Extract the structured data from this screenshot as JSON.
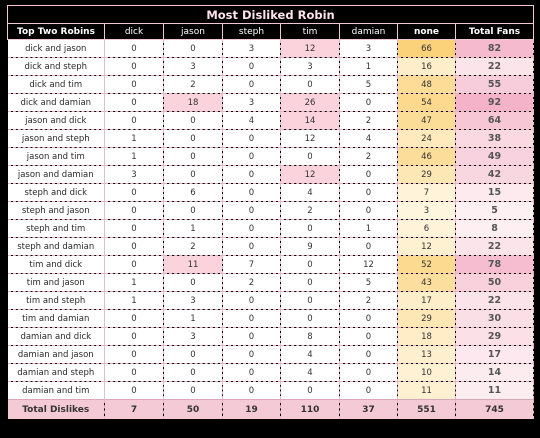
{
  "title": "Most Disliked Robin",
  "headers": [
    "Top Two Robins",
    "dick",
    "jason",
    "steph",
    "tim",
    "damian",
    "none",
    "Total Fans"
  ],
  "rows": [
    {
      "pair": "dick and jason",
      "v": [
        0,
        0,
        3,
        12,
        3,
        66
      ],
      "total": 82
    },
    {
      "pair": "dick and steph",
      "v": [
        0,
        3,
        0,
        3,
        1,
        16
      ],
      "total": 22
    },
    {
      "pair": "dick and tim",
      "v": [
        0,
        2,
        0,
        0,
        5,
        48
      ],
      "total": 55
    },
    {
      "pair": "dick and damian",
      "v": [
        0,
        18,
        3,
        26,
        0,
        54
      ],
      "total": 92
    },
    {
      "pair": "jason and dick",
      "v": [
        0,
        0,
        4,
        14,
        2,
        47
      ],
      "total": 64
    },
    {
      "pair": "jason and steph",
      "v": [
        1,
        0,
        0,
        12,
        4,
        24
      ],
      "total": 38
    },
    {
      "pair": "jason and tim",
      "v": [
        1,
        0,
        0,
        0,
        2,
        46
      ],
      "total": 49
    },
    {
      "pair": "jason and damian",
      "v": [
        3,
        0,
        0,
        12,
        0,
        29
      ],
      "total": 42
    },
    {
      "pair": "steph and dick",
      "v": [
        0,
        6,
        0,
        4,
        0,
        7
      ],
      "total": 15
    },
    {
      "pair": "steph and jason",
      "v": [
        0,
        0,
        0,
        2,
        0,
        3
      ],
      "total": 5
    },
    {
      "pair": "steph and tim",
      "v": [
        0,
        1,
        0,
        0,
        1,
        6
      ],
      "total": 8
    },
    {
      "pair": "steph and damian",
      "v": [
        0,
        2,
        0,
        9,
        0,
        12
      ],
      "total": 22
    },
    {
      "pair": "tim and dick",
      "v": [
        0,
        11,
        7,
        0,
        12,
        52
      ],
      "total": 78
    },
    {
      "pair": "tim and jason",
      "v": [
        1,
        0,
        2,
        0,
        5,
        43
      ],
      "total": 50
    },
    {
      "pair": "tim and steph",
      "v": [
        1,
        3,
        0,
        0,
        2,
        17
      ],
      "total": 22
    },
    {
      "pair": "tim and damian",
      "v": [
        0,
        1,
        0,
        0,
        0,
        29
      ],
      "total": 30
    },
    {
      "pair": "damian and dick",
      "v": [
        0,
        3,
        0,
        8,
        0,
        18
      ],
      "total": 29
    },
    {
      "pair": "damian and jason",
      "v": [
        0,
        0,
        0,
        4,
        0,
        13
      ],
      "total": 17
    },
    {
      "pair": "damian and steph",
      "v": [
        0,
        0,
        0,
        4,
        0,
        10
      ],
      "total": 14
    },
    {
      "pair": "damian and tim",
      "v": [
        0,
        0,
        0,
        0,
        0,
        11
      ],
      "total": 11
    }
  ],
  "footer": {
    "label": "Total Dislikes",
    "v": [
      7,
      50,
      19,
      110,
      37,
      551
    ],
    "total": 745
  },
  "highlights": [
    {
      "row": 0,
      "col": "tim"
    },
    {
      "row": 3,
      "col": "jason"
    },
    {
      "row": 3,
      "col": "tim"
    },
    {
      "row": 4,
      "col": "tim"
    },
    {
      "row": 7,
      "col": "tim"
    },
    {
      "row": 12,
      "col": "jason"
    }
  ],
  "colors": {
    "none_low": "#fff6df",
    "none_high": "#fbd27a",
    "total_low": "#fdf1f4",
    "total_high": "#f4b3c8",
    "highlight": "#fbd3dc",
    "footer": "#f5cad7",
    "border": "#f2c8d6"
  }
}
